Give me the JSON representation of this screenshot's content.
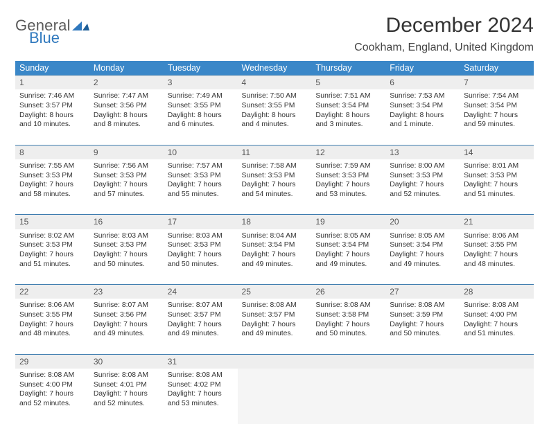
{
  "brand": {
    "word1": "General",
    "word2": "Blue"
  },
  "title": "December 2024",
  "location": "Cookham, England, United Kingdom",
  "colors": {
    "header_bg": "#3a87c8",
    "header_text": "#ffffff",
    "row_divider": "#3a7aae",
    "daynum_bg": "#eeeeee",
    "body_text": "#333333",
    "brand_gray": "#5a5a5a",
    "brand_blue": "#2f78bd",
    "empty_bg": "#f5f5f5"
  },
  "day_headers": [
    "Sunday",
    "Monday",
    "Tuesday",
    "Wednesday",
    "Thursday",
    "Friday",
    "Saturday"
  ],
  "weeks": [
    [
      {
        "n": "1",
        "sr": "7:46 AM",
        "ss": "3:57 PM",
        "dl": "8 hours and 10 minutes."
      },
      {
        "n": "2",
        "sr": "7:47 AM",
        "ss": "3:56 PM",
        "dl": "8 hours and 8 minutes."
      },
      {
        "n": "3",
        "sr": "7:49 AM",
        "ss": "3:55 PM",
        "dl": "8 hours and 6 minutes."
      },
      {
        "n": "4",
        "sr": "7:50 AM",
        "ss": "3:55 PM",
        "dl": "8 hours and 4 minutes."
      },
      {
        "n": "5",
        "sr": "7:51 AM",
        "ss": "3:54 PM",
        "dl": "8 hours and 3 minutes."
      },
      {
        "n": "6",
        "sr": "7:53 AM",
        "ss": "3:54 PM",
        "dl": "8 hours and 1 minute."
      },
      {
        "n": "7",
        "sr": "7:54 AM",
        "ss": "3:54 PM",
        "dl": "7 hours and 59 minutes."
      }
    ],
    [
      {
        "n": "8",
        "sr": "7:55 AM",
        "ss": "3:53 PM",
        "dl": "7 hours and 58 minutes."
      },
      {
        "n": "9",
        "sr": "7:56 AM",
        "ss": "3:53 PM",
        "dl": "7 hours and 57 minutes."
      },
      {
        "n": "10",
        "sr": "7:57 AM",
        "ss": "3:53 PM",
        "dl": "7 hours and 55 minutes."
      },
      {
        "n": "11",
        "sr": "7:58 AM",
        "ss": "3:53 PM",
        "dl": "7 hours and 54 minutes."
      },
      {
        "n": "12",
        "sr": "7:59 AM",
        "ss": "3:53 PM",
        "dl": "7 hours and 53 minutes."
      },
      {
        "n": "13",
        "sr": "8:00 AM",
        "ss": "3:53 PM",
        "dl": "7 hours and 52 minutes."
      },
      {
        "n": "14",
        "sr": "8:01 AM",
        "ss": "3:53 PM",
        "dl": "7 hours and 51 minutes."
      }
    ],
    [
      {
        "n": "15",
        "sr": "8:02 AM",
        "ss": "3:53 PM",
        "dl": "7 hours and 51 minutes."
      },
      {
        "n": "16",
        "sr": "8:03 AM",
        "ss": "3:53 PM",
        "dl": "7 hours and 50 minutes."
      },
      {
        "n": "17",
        "sr": "8:03 AM",
        "ss": "3:53 PM",
        "dl": "7 hours and 50 minutes."
      },
      {
        "n": "18",
        "sr": "8:04 AM",
        "ss": "3:54 PM",
        "dl": "7 hours and 49 minutes."
      },
      {
        "n": "19",
        "sr": "8:05 AM",
        "ss": "3:54 PM",
        "dl": "7 hours and 49 minutes."
      },
      {
        "n": "20",
        "sr": "8:05 AM",
        "ss": "3:54 PM",
        "dl": "7 hours and 49 minutes."
      },
      {
        "n": "21",
        "sr": "8:06 AM",
        "ss": "3:55 PM",
        "dl": "7 hours and 48 minutes."
      }
    ],
    [
      {
        "n": "22",
        "sr": "8:06 AM",
        "ss": "3:55 PM",
        "dl": "7 hours and 48 minutes."
      },
      {
        "n": "23",
        "sr": "8:07 AM",
        "ss": "3:56 PM",
        "dl": "7 hours and 49 minutes."
      },
      {
        "n": "24",
        "sr": "8:07 AM",
        "ss": "3:57 PM",
        "dl": "7 hours and 49 minutes."
      },
      {
        "n": "25",
        "sr": "8:08 AM",
        "ss": "3:57 PM",
        "dl": "7 hours and 49 minutes."
      },
      {
        "n": "26",
        "sr": "8:08 AM",
        "ss": "3:58 PM",
        "dl": "7 hours and 50 minutes."
      },
      {
        "n": "27",
        "sr": "8:08 AM",
        "ss": "3:59 PM",
        "dl": "7 hours and 50 minutes."
      },
      {
        "n": "28",
        "sr": "8:08 AM",
        "ss": "4:00 PM",
        "dl": "7 hours and 51 minutes."
      }
    ],
    [
      {
        "n": "29",
        "sr": "8:08 AM",
        "ss": "4:00 PM",
        "dl": "7 hours and 52 minutes."
      },
      {
        "n": "30",
        "sr": "8:08 AM",
        "ss": "4:01 PM",
        "dl": "7 hours and 52 minutes."
      },
      {
        "n": "31",
        "sr": "8:08 AM",
        "ss": "4:02 PM",
        "dl": "7 hours and 53 minutes."
      },
      null,
      null,
      null,
      null
    ]
  ],
  "labels": {
    "sunrise": "Sunrise:",
    "sunset": "Sunset:",
    "daylight": "Daylight:"
  }
}
